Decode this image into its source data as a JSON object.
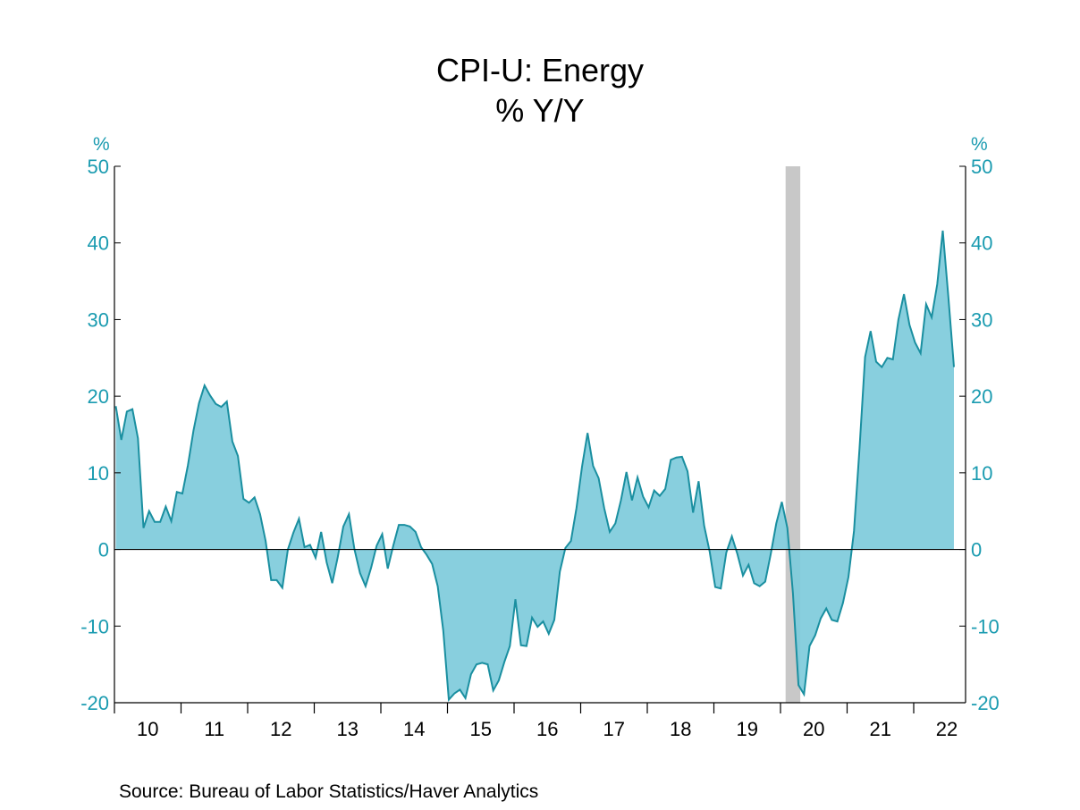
{
  "chart_data": {
    "type": "area",
    "title": "CPI-U: Energy",
    "subtitle": "% Y/Y",
    "ylabel_left": "%",
    "ylabel_right": "%",
    "source": "Source:  Bureau of Labor Statistics/Haver Analytics",
    "ylim": [
      -20,
      50
    ],
    "yticks": [
      50,
      40,
      30,
      20,
      10,
      0,
      -10,
      -20
    ],
    "xticks": [
      "10",
      "11",
      "12",
      "13",
      "14",
      "15",
      "16",
      "17",
      "18",
      "19",
      "20",
      "21",
      "22"
    ],
    "x_start": "2010-01",
    "frequency": "monthly",
    "recession": {
      "start": "2020-02",
      "end": "2020-04"
    },
    "colors": {
      "line": "#1a8fa0",
      "fill": "#7ecbdb",
      "axis_text": "#1a9bb0",
      "recession": "#c8c8c8"
    },
    "values": [
      18.7,
      14.3,
      18.0,
      18.3,
      14.5,
      2.8,
      5.0,
      3.6,
      3.6,
      5.6,
      3.7,
      7.5,
      7.3,
      11.0,
      15.5,
      19.1,
      21.4,
      20.1,
      19.0,
      18.6,
      19.3,
      14.1,
      12.2,
      6.6,
      6.1,
      6.8,
      4.6,
      1.1,
      -4.0,
      -4.0,
      -5.0,
      0.0,
      2.2,
      4.0,
      0.3,
      0.6,
      -1.1,
      2.3,
      -1.7,
      -4.4,
      -1.0,
      3.0,
      4.6,
      0.0,
      -3.1,
      -4.8,
      -2.4,
      0.5,
      2.0,
      -2.5,
      0.5,
      3.2,
      3.2,
      3.0,
      2.3,
      0.3,
      -0.7,
      -1.9,
      -4.8,
      -10.6,
      -19.6,
      -18.8,
      -18.3,
      -19.4,
      -16.3,
      -15.0,
      -14.8,
      -15.0,
      -18.4,
      -17.1,
      -14.7,
      -12.6,
      -6.5,
      -12.5,
      -12.6,
      -8.9,
      -10.1,
      -9.4,
      -11.0,
      -9.2,
      -2.9,
      0.2,
      1.1,
      5.4,
      10.8,
      15.2,
      10.9,
      9.3,
      5.4,
      2.3,
      3.4,
      6.4,
      10.1,
      6.4,
      9.4,
      6.9,
      5.5,
      7.7,
      7.0,
      7.9,
      11.7,
      12.0,
      12.1,
      10.2,
      4.8,
      8.9,
      3.1,
      -0.3,
      -4.9,
      -5.1,
      -0.4,
      1.7,
      -0.6,
      -3.4,
      -2.0,
      -4.4,
      -4.8,
      -4.2,
      -0.6,
      3.4,
      6.2,
      2.8,
      -5.7,
      -17.7,
      -18.9,
      -12.6,
      -11.2,
      -9.0,
      -7.7,
      -9.2,
      -9.4,
      -7.0,
      -3.6,
      2.4,
      13.2,
      25.1,
      28.5,
      24.5,
      23.8,
      25.0,
      24.8,
      30.0,
      33.3,
      29.3,
      27.0,
      25.6,
      32.0,
      30.3,
      34.6,
      41.6,
      32.9,
      23.8
    ]
  }
}
